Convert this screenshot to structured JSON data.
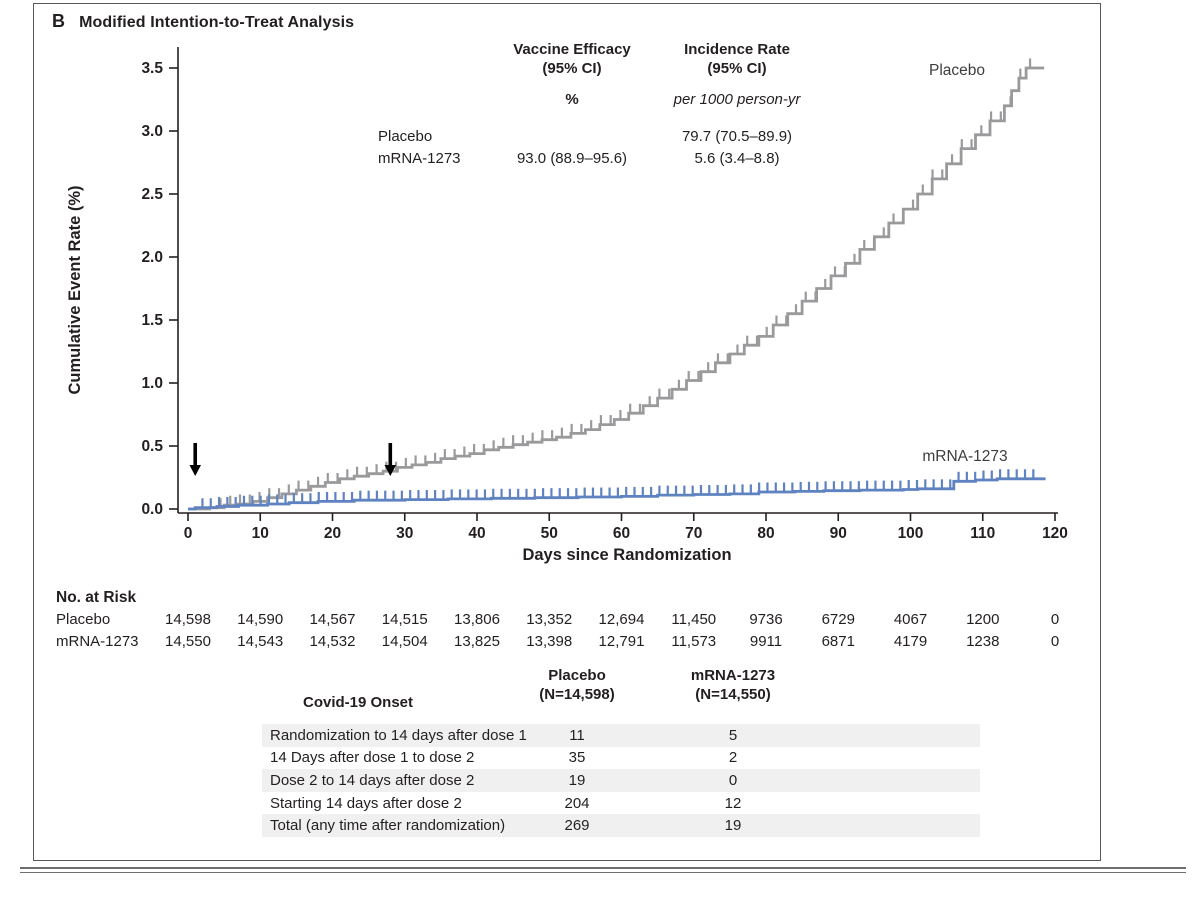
{
  "panel": {
    "label": "B",
    "title": "Modified Intention-to-Treat Analysis"
  },
  "stats_table": {
    "efficacy_header_line1": "Vaccine Efficacy",
    "efficacy_header_line2": "(95% CI)",
    "efficacy_unit": "%",
    "incidence_header_line1": "Incidence Rate",
    "incidence_header_line2": "(95% CI)",
    "incidence_unit": "per 1000 person-yr",
    "rows": [
      {
        "label": "Placebo",
        "efficacy": "",
        "incidence": "79.7 (70.5–89.9)"
      },
      {
        "label": "mRNA-1273",
        "efficacy": "93.0 (88.9–95.6)",
        "incidence": "5.6 (3.4–8.8)"
      }
    ]
  },
  "chart_data": {
    "type": "line",
    "subtype": "kaplan-meier-step",
    "xlabel": "Days since Randomization",
    "ylabel": "Cumulative Event Rate (%)",
    "xlim": [
      0,
      120
    ],
    "ylim": [
      0,
      3.5
    ],
    "xticks": [
      0,
      10,
      20,
      30,
      40,
      50,
      60,
      70,
      80,
      90,
      100,
      110,
      120
    ],
    "yticks": [
      0.0,
      0.5,
      1.0,
      1.5,
      2.0,
      2.5,
      3.0,
      3.5
    ],
    "grid": false,
    "series": [
      {
        "name": "Placebo",
        "color": "#9a9a9c",
        "points": [
          [
            0,
            0
          ],
          [
            3,
            0.01
          ],
          [
            5,
            0.03
          ],
          [
            7,
            0.04
          ],
          [
            9,
            0.06
          ],
          [
            11,
            0.09
          ],
          [
            13,
            0.12
          ],
          [
            15,
            0.15
          ],
          [
            17,
            0.18
          ],
          [
            19,
            0.21
          ],
          [
            21,
            0.24
          ],
          [
            23,
            0.26
          ],
          [
            25,
            0.28
          ],
          [
            27,
            0.3
          ],
          [
            29,
            0.33
          ],
          [
            31,
            0.35
          ],
          [
            33,
            0.37
          ],
          [
            35,
            0.4
          ],
          [
            37,
            0.42
          ],
          [
            39,
            0.44
          ],
          [
            41,
            0.47
          ],
          [
            43,
            0.49
          ],
          [
            45,
            0.51
          ],
          [
            47,
            0.53
          ],
          [
            49,
            0.55
          ],
          [
            51,
            0.57
          ],
          [
            53,
            0.6
          ],
          [
            55,
            0.63
          ],
          [
            57,
            0.67
          ],
          [
            59,
            0.71
          ],
          [
            61,
            0.76
          ],
          [
            63,
            0.82
          ],
          [
            65,
            0.88
          ],
          [
            67,
            0.95
          ],
          [
            69,
            1.02
          ],
          [
            71,
            1.09
          ],
          [
            73,
            1.16
          ],
          [
            75,
            1.23
          ],
          [
            77,
            1.3
          ],
          [
            79,
            1.37
          ],
          [
            81,
            1.46
          ],
          [
            83,
            1.55
          ],
          [
            85,
            1.65
          ],
          [
            87,
            1.75
          ],
          [
            89,
            1.85
          ],
          [
            91,
            1.95
          ],
          [
            93,
            2.06
          ],
          [
            95,
            2.16
          ],
          [
            97,
            2.27
          ],
          [
            99,
            2.38
          ],
          [
            101,
            2.5
          ],
          [
            103,
            2.62
          ],
          [
            105,
            2.74
          ],
          [
            107,
            2.86
          ],
          [
            109,
            2.97
          ],
          [
            111,
            3.08
          ],
          [
            113,
            3.2
          ],
          [
            114,
            3.32
          ],
          [
            115,
            3.42
          ],
          [
            116,
            3.5
          ],
          [
            118.5,
            3.5
          ]
        ],
        "censor_ticks": {
          "start": 4.5,
          "end": 117.5,
          "step": 1.35
        }
      },
      {
        "name": "mRNA-1273",
        "color": "#5f82c0",
        "points": [
          [
            0,
            0
          ],
          [
            1,
            0.01
          ],
          [
            4,
            0.02
          ],
          [
            7,
            0.03
          ],
          [
            11,
            0.04
          ],
          [
            14,
            0.05
          ],
          [
            18,
            0.06
          ],
          [
            23,
            0.07
          ],
          [
            30,
            0.075
          ],
          [
            36,
            0.08
          ],
          [
            42,
            0.085
          ],
          [
            48,
            0.09
          ],
          [
            54,
            0.095
          ],
          [
            60,
            0.1
          ],
          [
            65,
            0.11
          ],
          [
            70,
            0.115
          ],
          [
            75,
            0.12
          ],
          [
            79,
            0.135
          ],
          [
            84,
            0.14
          ],
          [
            88,
            0.145
          ],
          [
            93,
            0.15
          ],
          [
            99,
            0.155
          ],
          [
            101,
            0.16
          ],
          [
            106,
            0.22
          ],
          [
            109,
            0.23
          ],
          [
            112,
            0.24
          ],
          [
            118.5,
            0.25
          ]
        ],
        "censor_ticks": {
          "start": 2,
          "end": 118,
          "step": 1.15
        }
      }
    ],
    "dose_arrow_days": [
      1,
      28
    ],
    "legend_position": "curve-end-labels"
  },
  "risk_table": {
    "title": "No. at Risk",
    "days": [
      0,
      10,
      20,
      30,
      40,
      50,
      60,
      70,
      80,
      90,
      100,
      110,
      120
    ],
    "rows": [
      {
        "label": "Placebo",
        "values": [
          "14,598",
          "14,590",
          "14,567",
          "14,515",
          "13,806",
          "13,352",
          "12,694",
          "11,450",
          "9736",
          "6729",
          "4067",
          "1200",
          "0"
        ]
      },
      {
        "label": "mRNA-1273",
        "values": [
          "14,550",
          "14,543",
          "14,532",
          "14,504",
          "13,825",
          "13,398",
          "12,791",
          "11,573",
          "9911",
          "6871",
          "4179",
          "1238",
          "0"
        ]
      }
    ]
  },
  "onset_table": {
    "title": "Covid-19 Onset",
    "col1_line1": "Placebo",
    "col1_line2": "(N=14,598)",
    "col2_line1": "mRNA-1273",
    "col2_line2": "(N=14,550)",
    "rows": [
      {
        "label": "Randomization to 14 days after dose 1",
        "placebo": "11",
        "mrna": "5"
      },
      {
        "label": "14 Days after dose 1 to dose 2",
        "placebo": "35",
        "mrna": "2"
      },
      {
        "label": "Dose 2 to 14 days after dose 2",
        "placebo": "19",
        "mrna": "0"
      },
      {
        "label": "Starting 14 days after dose 2",
        "placebo": "204",
        "mrna": "12"
      },
      {
        "label": "Total (any time after randomization)",
        "placebo": "269",
        "mrna": "19"
      }
    ]
  },
  "colors": {
    "placebo_curve": "#9a9a9c",
    "mrna_curve": "#5f82c0",
    "axis": "#231f20",
    "row_shade": "#f0f0f1",
    "box_border": "#58595b",
    "rule": "#6d6e71"
  }
}
